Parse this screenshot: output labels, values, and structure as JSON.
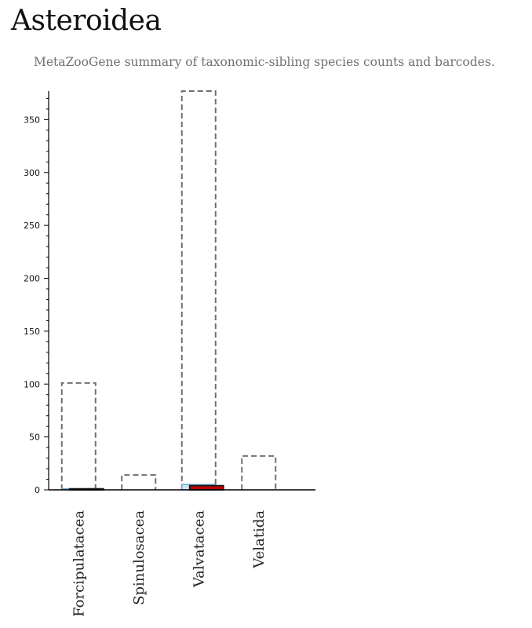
{
  "page": {
    "title": "Asteroidea",
    "subtitle": "MetaZooGene summary of taxonomic-sibling species counts and barcodes."
  },
  "colors": {
    "species_outline": "#707070",
    "species_barcoded_fill": "#cfe3f3",
    "species_barcoded_stroke": "#6aaad6",
    "barcodes_fill": "#c00000",
    "barcodes_stroke": "#1a1a1a",
    "axis": "#000000"
  },
  "chart_data": {
    "type": "bar",
    "categories": [
      "Forcipulatacea",
      "Spinulosacea",
      "Valvatacea",
      "Velatida"
    ],
    "series": [
      {
        "values": [
          101,
          14,
          377,
          32
        ]
      },
      {
        "values": [
          1,
          0,
          5,
          0
        ]
      },
      {
        "values": [
          1,
          0,
          4,
          0
        ]
      }
    ],
    "ylim": [
      0,
      377
    ],
    "yticks": [
      0,
      50,
      100,
      150,
      200,
      250,
      300,
      350
    ],
    "ytick_labels": [
      "0",
      "50",
      "100",
      "150",
      "200",
      "250",
      "300",
      "350"
    ],
    "grid": false
  }
}
